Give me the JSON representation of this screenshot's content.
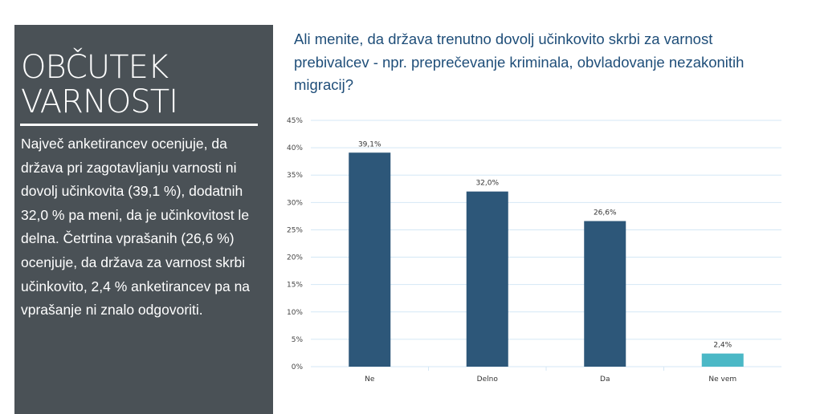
{
  "panel": {
    "title_line1": "OBČUTEK",
    "title_line2": "VARNOSTI",
    "text": "Največ anketirancev ocenjuje, da država pri zagotavljanju varnosti ni dovolj učinkovita (39,1 %), dodatnih 32,0 % pa meni, da je učinkovitost le delna. Četrtina vprašanih (26,6 %) ocenjuje, da država za varnost skrbi učinkovito, 2,4 % anketirancev pa na vprašanje ni znalo odgovoriti."
  },
  "chart_data": {
    "type": "bar",
    "title": "Ali menite, da država trenutno dovolj učinkovito skrbi za varnost prebivalcev - npr. preprečevanje kriminala, obvladovanje nezakonitih migracij?",
    "categories": [
      "Ne",
      "Delno",
      "Da",
      "Ne vem"
    ],
    "values": [
      39.1,
      32.0,
      26.6,
      2.4
    ],
    "data_labels": [
      "39,1%",
      "32,0%",
      "26,6%",
      "2,4%"
    ],
    "colors": [
      "#2d5779",
      "#2d5779",
      "#2d5779",
      "#4bb8c6"
    ],
    "ylim": [
      0,
      45
    ],
    "yticks": [
      "0%",
      "5%",
      "10%",
      "15%",
      "20%",
      "25%",
      "30%",
      "35%",
      "40%",
      "45%"
    ],
    "grid": true,
    "xlabel": "",
    "ylabel": ""
  }
}
